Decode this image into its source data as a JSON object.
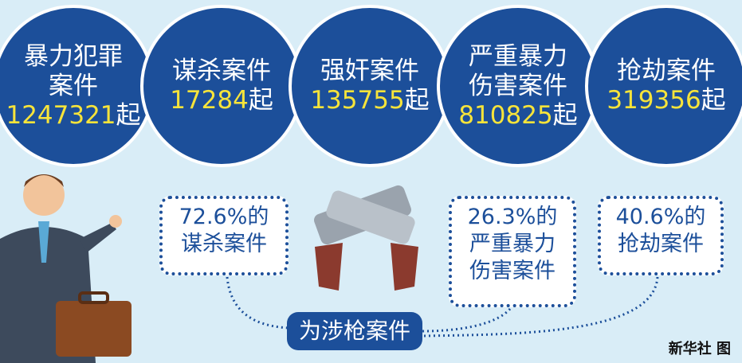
{
  "circles": [
    {
      "label_lines": [
        "暴力犯罪",
        "案件"
      ],
      "count": 1247321,
      "unit": "起"
    },
    {
      "label_lines": [
        "谋杀案件"
      ],
      "count": 17284,
      "unit": "起"
    },
    {
      "label_lines": [
        "强奸案件"
      ],
      "count": 135755,
      "unit": "起"
    },
    {
      "label_lines": [
        "严重暴力",
        "伤害案件"
      ],
      "count": 810825,
      "unit": "起"
    },
    {
      "label_lines": [
        "抢劫案件"
      ],
      "count": 319356,
      "unit": "起"
    }
  ],
  "boxes": [
    {
      "lines": [
        "72.6%的",
        "谋杀案件"
      ]
    },
    {
      "lines": [
        "26.3%的",
        "严重暴力",
        "伤害案件"
      ]
    },
    {
      "lines": [
        "40.6%的",
        "抢劫案件"
      ]
    }
  ],
  "center_label": "为涉枪案件",
  "credit": "新华社 图"
}
